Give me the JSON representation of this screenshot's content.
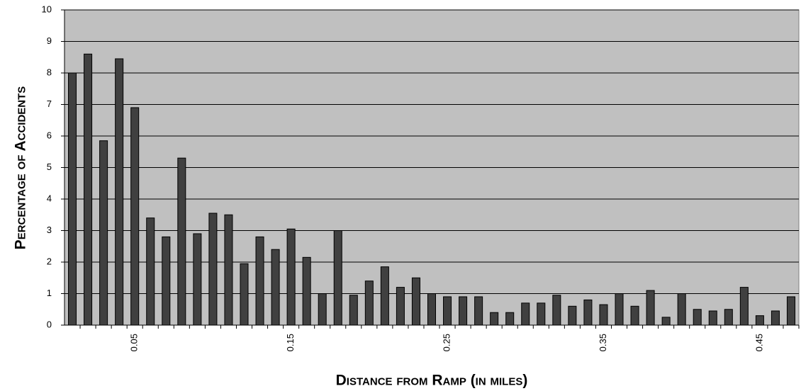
{
  "chart_data": {
    "type": "bar",
    "y_label": "Percentage of Accidents",
    "x_label": "Distance from Ramp (in miles)",
    "categories": [
      null,
      null,
      null,
      null,
      "0.05",
      null,
      null,
      null,
      null,
      null,
      null,
      null,
      null,
      null,
      "0.15",
      null,
      null,
      null,
      null,
      null,
      null,
      null,
      null,
      null,
      "0.25",
      null,
      null,
      null,
      null,
      null,
      null,
      null,
      null,
      null,
      "0.35",
      null,
      null,
      null,
      null,
      null,
      null,
      null,
      null,
      null,
      "0.45",
      null,
      null
    ],
    "values": [
      8.0,
      8.6,
      5.85,
      8.45,
      6.9,
      3.4,
      2.8,
      5.3,
      2.9,
      3.55,
      3.5,
      1.95,
      2.8,
      2.4,
      3.05,
      2.15,
      1.0,
      3.0,
      0.95,
      1.4,
      1.85,
      1.2,
      1.5,
      1.0,
      0.9,
      0.9,
      0.9,
      0.4,
      0.4,
      0.7,
      0.7,
      0.95,
      0.6,
      0.8,
      0.65,
      1.0,
      0.6,
      1.1,
      0.25,
      1.0,
      0.5,
      0.45,
      0.5,
      1.2,
      0.3,
      0.45,
      0.9
    ],
    "color": "#404040",
    "plot_background": "#c0c0c0",
    "ylim": [
      0,
      10
    ],
    "yticks": [
      0,
      1,
      2,
      3,
      4,
      5,
      6,
      7,
      8,
      9,
      10
    ],
    "grid": true
  }
}
